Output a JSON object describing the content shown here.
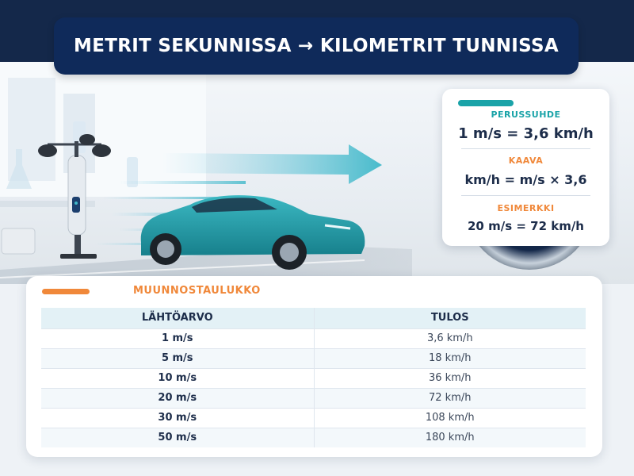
{
  "title": "METRIT SEKUNNISSA → KILOMETRIT TUNNISSA",
  "info": {
    "basic_label": "PERUSSUHDE",
    "basic_value": "1 m/s = 3,6 km/h",
    "formula_label": "KAAVA",
    "formula_value": "km/h = m/s × 3,6",
    "example_label": "ESIMERKKI",
    "example_value": "20 m/s = 72 km/h"
  },
  "table": {
    "title": "MUUNNOSTAULUKKO",
    "headers": [
      "LÄHTÖARVO",
      "TULOS"
    ],
    "rows": [
      [
        "1 m/s",
        "3,6 km/h"
      ],
      [
        "5 m/s",
        "18 km/h"
      ],
      [
        "10 m/s",
        "36 km/h"
      ],
      [
        "20 m/s",
        "72 km/h"
      ],
      [
        "30 m/s",
        "108 km/h"
      ],
      [
        "50 m/s",
        "180 km/h"
      ]
    ]
  },
  "colors": {
    "navy": "#0f2a5a",
    "teal": "#1aa3a8",
    "orange": "#f0883a",
    "car": "#1f9aa5"
  },
  "icons": [
    "anemometer-icon",
    "car-icon",
    "arrow-right-icon",
    "speedometer-icon"
  ]
}
